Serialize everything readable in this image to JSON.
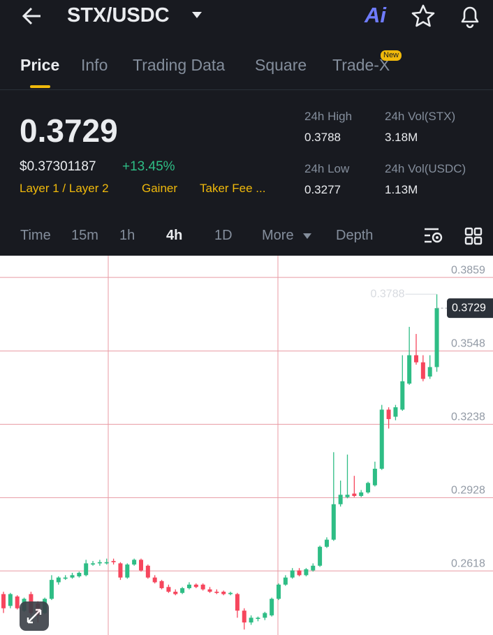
{
  "header": {
    "pair": "STX/USDC",
    "ai": "Ai"
  },
  "tabs": {
    "items": [
      "Price",
      "Info",
      "Trading Data",
      "Square",
      "Trade-X"
    ],
    "badge": "New"
  },
  "ticker": {
    "last": "0.3729",
    "usd": "$0.37301187",
    "change": "+13.45%",
    "tags": [
      "Layer 1 / Layer 2",
      "Gainer",
      "Taker Fee ..."
    ],
    "stats": [
      {
        "label": "24h High",
        "value": "0.3788"
      },
      {
        "label": "24h Vol(STX)",
        "value": "3.18M"
      },
      {
        "label": "24h Low",
        "value": "0.3277"
      },
      {
        "label": "24h Vol(USDC)",
        "value": "1.13M"
      }
    ]
  },
  "intervals": [
    "Time",
    "15m",
    "1h",
    "4h",
    "1D",
    "More",
    "Depth"
  ],
  "chart_data": {
    "type": "candlestick",
    "up_color": "#2ebd85",
    "down_color": "#f6465d",
    "grid_color": "#e89aa3",
    "ylim": [
      0.2347,
      0.3951
    ],
    "yticks": [
      0.2618,
      0.2928,
      0.3238,
      0.3548,
      0.3859
    ],
    "open": [
      0.252,
      0.247,
      0.251,
      0.245,
      0.252,
      0.248,
      0.244,
      0.25,
      0.257,
      0.2585,
      0.259,
      0.2595,
      0.26,
      0.2645,
      0.265,
      0.265,
      0.266,
      0.265,
      0.259,
      0.2645,
      0.2665,
      0.264,
      0.259,
      0.2575,
      0.255,
      0.253,
      0.2525,
      0.2545,
      0.256,
      0.256,
      0.254,
      0.253,
      0.253,
      0.252,
      0.252,
      0.245,
      0.24,
      0.2415,
      0.242,
      0.243,
      0.25,
      0.256,
      0.259,
      0.262,
      0.26,
      0.262,
      0.264,
      0.272,
      0.275,
      0.29,
      0.293,
      0.2945,
      0.2935,
      0.295,
      0.298,
      0.305,
      0.33,
      0.327,
      0.33,
      0.341,
      0.353,
      0.35,
      0.344,
      0.348
    ],
    "high": [
      0.253,
      0.2525,
      0.2515,
      0.2505,
      0.253,
      0.249,
      0.2505,
      0.26,
      0.2595,
      0.26,
      0.261,
      0.2615,
      0.2665,
      0.266,
      0.2665,
      0.267,
      0.267,
      0.2655,
      0.265,
      0.267,
      0.267,
      0.2645,
      0.26,
      0.258,
      0.256,
      0.254,
      0.255,
      0.257,
      0.2565,
      0.2565,
      0.255,
      0.254,
      0.2535,
      0.253,
      0.2525,
      0.246,
      0.243,
      0.2425,
      0.2445,
      0.2505,
      0.2565,
      0.26,
      0.263,
      0.263,
      0.263,
      0.265,
      0.2725,
      0.276,
      0.312,
      0.3,
      0.311,
      0.302,
      0.296,
      0.2995,
      0.308,
      0.332,
      0.331,
      0.332,
      0.353,
      0.365,
      0.362,
      0.353,
      0.353,
      0.3788
    ],
    "low": [
      0.244,
      0.246,
      0.2455,
      0.2445,
      0.243,
      0.24,
      0.2435,
      0.2495,
      0.256,
      0.258,
      0.2585,
      0.259,
      0.2595,
      0.264,
      0.264,
      0.2645,
      0.2645,
      0.258,
      0.2585,
      0.264,
      0.2615,
      0.2585,
      0.2565,
      0.254,
      0.2525,
      0.2515,
      0.252,
      0.254,
      0.2545,
      0.2535,
      0.2525,
      0.252,
      0.2515,
      0.2515,
      0.242,
      0.237,
      0.239,
      0.2405,
      0.241,
      0.2425,
      0.2495,
      0.2555,
      0.2585,
      0.2595,
      0.2595,
      0.2615,
      0.2635,
      0.2715,
      0.2745,
      0.289,
      0.2925,
      0.293,
      0.293,
      0.2945,
      0.2975,
      0.3045,
      0.322,
      0.3255,
      0.3295,
      0.3405,
      0.349,
      0.342,
      0.343,
      0.346
    ],
    "close": [
      0.246,
      0.252,
      0.246,
      0.25,
      0.244,
      0.243,
      0.25,
      0.258,
      0.259,
      0.259,
      0.26,
      0.261,
      0.265,
      0.265,
      0.2655,
      0.2655,
      0.2655,
      0.259,
      0.2645,
      0.2665,
      0.262,
      0.259,
      0.257,
      0.2545,
      0.253,
      0.252,
      0.2545,
      0.256,
      0.255,
      0.254,
      0.253,
      0.2525,
      0.252,
      0.2525,
      0.245,
      0.24,
      0.242,
      0.242,
      0.244,
      0.25,
      0.256,
      0.259,
      0.262,
      0.26,
      0.2625,
      0.264,
      0.272,
      0.275,
      0.29,
      0.294,
      0.294,
      0.2935,
      0.295,
      0.299,
      0.305,
      0.33,
      0.326,
      0.331,
      0.342,
      0.353,
      0.35,
      0.343,
      0.348,
      0.3729
    ]
  }
}
